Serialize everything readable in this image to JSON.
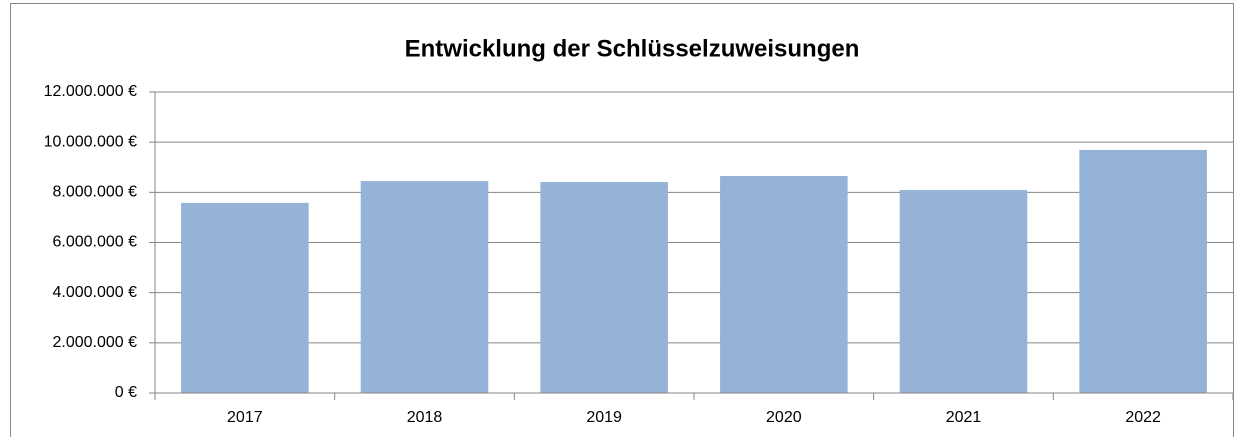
{
  "chart_data": {
    "type": "bar",
    "title": "Entwicklung der Schlüsselzuweisungen",
    "categories": [
      "2017",
      "2018",
      "2019",
      "2020",
      "2021",
      "2022"
    ],
    "values": [
      7580000,
      8450000,
      8410000,
      8650000,
      8090000,
      9690000
    ],
    "color": "#95b3d7",
    "ylim": [
      0,
      12000000
    ],
    "yticks": [
      {
        "value": 0,
        "label": "0 €"
      },
      {
        "value": 2000000,
        "label": "2.000.000 €"
      },
      {
        "value": 4000000,
        "label": "4.000.000 €"
      },
      {
        "value": 6000000,
        "label": "6.000.000 €"
      },
      {
        "value": 8000000,
        "label": "8.000.000 €"
      },
      {
        "value": 10000000,
        "label": "10.000.000 €"
      },
      {
        "value": 12000000,
        "label": "12.000.000 €"
      }
    ],
    "grid": true
  }
}
